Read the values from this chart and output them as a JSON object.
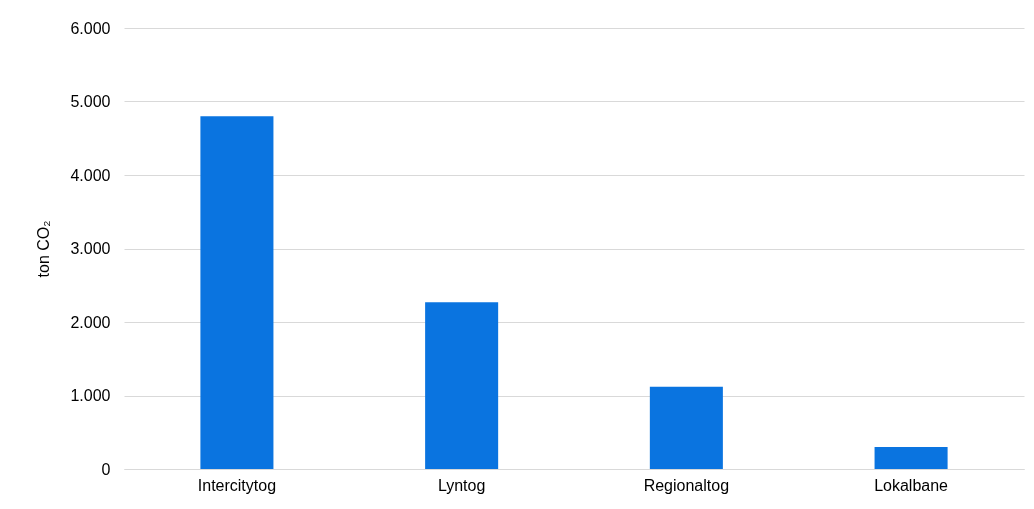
{
  "chart_data": {
    "type": "bar",
    "ylabel": "ton CO₂",
    "categories": [
      "Intercitytog",
      "Lyntog",
      "Regionaltog",
      "Lokalbane"
    ],
    "values": [
      4800,
      2270,
      1120,
      300
    ],
    "color": "#0a74e0",
    "ylim": [
      0,
      6000
    ],
    "yticks": [
      {
        "value": 0,
        "label": "0"
      },
      {
        "value": 1000,
        "label": "1.000"
      },
      {
        "value": 2000,
        "label": "2.000"
      },
      {
        "value": 3000,
        "label": "3.000"
      },
      {
        "value": 4000,
        "label": "4.000"
      },
      {
        "value": 5000,
        "label": "5.000"
      },
      {
        "value": 6000,
        "label": "6.000"
      }
    ],
    "grid": "y"
  }
}
